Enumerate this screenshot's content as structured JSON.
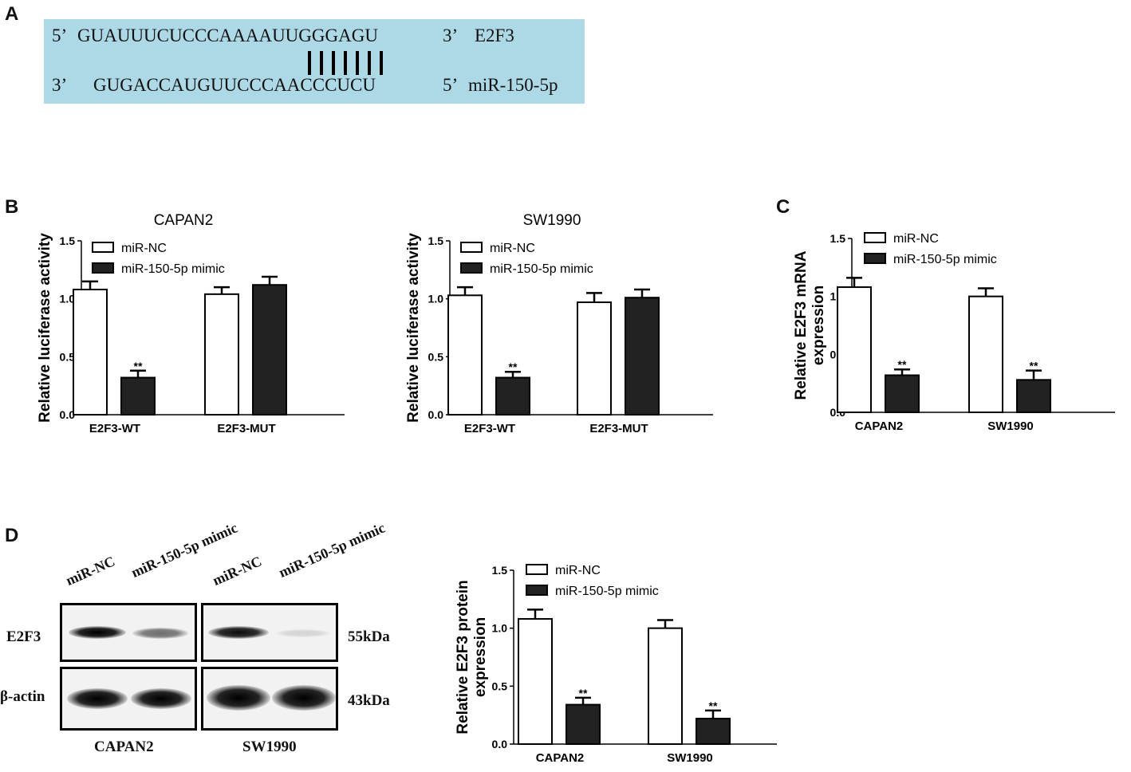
{
  "panels": {
    "a": "A",
    "b": "B",
    "c": "C",
    "d": "D"
  },
  "sequence": {
    "top_5prime": "5’",
    "top_seq": "GUAUUUCUCCCAAAAUUGGGAGU",
    "top_3prime": "3’",
    "top_name": "E2F3",
    "bottom_3prime": "3’",
    "bottom_seq": "GUGACCAUGUUCCCAACCCUCU",
    "bottom_5prime": "5’",
    "bottom_name": "miR-150-5p",
    "pair_count": 7
  },
  "colors": {
    "box": "#add8e6",
    "nc": "#ffffff",
    "mimic": "#222222",
    "axis": "#000000"
  },
  "chart_data": [
    {
      "id": "b1",
      "type": "bar",
      "title": "CAPAN2",
      "ylabel": "Relative luciferase activity",
      "xlabel": "",
      "ylim": [
        0,
        1.5
      ],
      "yticks": [
        "0.0",
        "0.5",
        "1.0",
        "1.5"
      ],
      "categories": [
        "E2F3-WT",
        "E2F3-MUT"
      ],
      "legend_position": "top-left",
      "series": [
        {
          "name": "miR-NC",
          "values": [
            1.08,
            1.04
          ],
          "errors": [
            0.07,
            0.06
          ],
          "sig": [
            "",
            ""
          ]
        },
        {
          "name": "miR-150-5p mimic",
          "values": [
            0.32,
            1.12
          ],
          "errors": [
            0.06,
            0.07
          ],
          "sig": [
            "**",
            ""
          ]
        }
      ]
    },
    {
      "id": "b2",
      "type": "bar",
      "title": "SW1990",
      "ylabel": "Relative luciferase activity",
      "xlabel": "",
      "ylim": [
        0,
        1.5
      ],
      "yticks": [
        "0.0",
        "0.5",
        "1.0",
        "1.5"
      ],
      "categories": [
        "E2F3-WT",
        "E2F3-MUT"
      ],
      "legend_position": "top-left",
      "series": [
        {
          "name": "miR-NC",
          "values": [
            1.03,
            0.97
          ],
          "errors": [
            0.07,
            0.08
          ],
          "sig": [
            "",
            ""
          ]
        },
        {
          "name": "miR-150-5p mimic",
          "values": [
            0.32,
            1.01
          ],
          "errors": [
            0.05,
            0.07
          ],
          "sig": [
            "**",
            ""
          ]
        }
      ]
    },
    {
      "id": "c",
      "type": "bar",
      "title": "",
      "ylabel": "Relative E2F3 mRNA expression",
      "xlabel": "",
      "ylim": [
        0,
        1.5
      ],
      "yticks": [
        "0.0",
        "0.5",
        "1.0",
        "1.5"
      ],
      "categories": [
        "CAPAN2",
        "SW1990"
      ],
      "legend_position": "top-left",
      "series": [
        {
          "name": "miR-NC",
          "values": [
            1.08,
            1.0
          ],
          "errors": [
            0.08,
            0.07
          ],
          "sig": [
            "",
            ""
          ]
        },
        {
          "name": "miR-150-5p mimic",
          "values": [
            0.32,
            0.28
          ],
          "errors": [
            0.05,
            0.08
          ],
          "sig": [
            "**",
            "**"
          ]
        }
      ]
    },
    {
      "id": "d",
      "type": "bar",
      "title": "",
      "ylabel": "Relative E2F3 protein expression",
      "xlabel": "",
      "ylim": [
        0,
        1.5
      ],
      "yticks": [
        "0.0",
        "0.5",
        "1.0",
        "1.5"
      ],
      "categories": [
        "CAPAN2",
        "SW1990"
      ],
      "legend_position": "top-left",
      "series": [
        {
          "name": "miR-NC",
          "values": [
            1.08,
            1.0
          ],
          "errors": [
            0.08,
            0.07
          ],
          "sig": [
            "",
            ""
          ]
        },
        {
          "name": "miR-150-5p mimic",
          "values": [
            0.34,
            0.22
          ],
          "errors": [
            0.06,
            0.07
          ],
          "sig": [
            "**",
            "**"
          ]
        }
      ]
    }
  ],
  "blot": {
    "lanes": [
      "miR-NC",
      "miR-150-5p mimic",
      "miR-NC",
      "miR-150-5p mimic"
    ],
    "rows": [
      {
        "label": "E2F3",
        "size": "55kDa"
      },
      {
        "label": "β-actin",
        "size": "43kDa"
      }
    ],
    "groups": [
      "CAPAN2",
      "SW1990"
    ],
    "e2f3_intensity": [
      1.0,
      0.55,
      0.95,
      0.12
    ],
    "actin_intensity": [
      1.0,
      1.0,
      1.0,
      1.0
    ]
  }
}
